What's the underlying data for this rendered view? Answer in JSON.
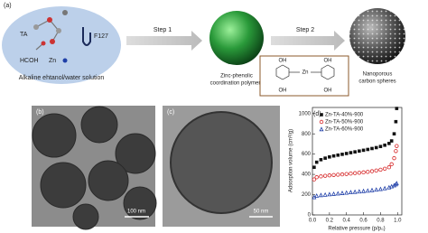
{
  "panels": {
    "a": {
      "label": "(a)",
      "ta": "TA",
      "hcoh": "HCOH",
      "zn": "Zn",
      "f127": "F127",
      "solution": "Alkaline ehtanol/water solution",
      "step1": "Step 1",
      "step2": "Step 2",
      "polymer": [
        "Zinc-phenolic",
        "coordination polymers"
      ],
      "carbon": [
        "Nanoporous",
        "carbon spheres"
      ],
      "molecule": {
        "oh": [
          "OH",
          "OH",
          "OH",
          "OH"
        ],
        "zn": "Zn"
      }
    },
    "b": {
      "label": "(b)",
      "scale": "100 nm"
    },
    "c": {
      "label": "(c)",
      "scale": "50 nm"
    },
    "d": {
      "label": "(d)"
    }
  },
  "chart_data": {
    "type": "scatter",
    "ylabel": "Adsorption volume (cm³/g)",
    "xlabel": "Relative pressure (p/p₀)",
    "x": [
      0.02,
      0.05,
      0.1,
      0.15,
      0.2,
      0.25,
      0.3,
      0.35,
      0.4,
      0.45,
      0.5,
      0.55,
      0.6,
      0.65,
      0.7,
      0.75,
      0.8,
      0.85,
      0.9,
      0.93,
      0.96,
      0.98,
      0.99
    ],
    "series": [
      {
        "name": "Zn-TA-40%-900",
        "color": "#111111",
        "marker": "square",
        "values": [
          470,
          520,
          545,
          560,
          572,
          582,
          590,
          598,
          606,
          614,
          622,
          630,
          638,
          646,
          655,
          664,
          675,
          688,
          705,
          730,
          800,
          920,
          1050
        ]
      },
      {
        "name": "Zn-TA-50%-900",
        "color": "#d62728",
        "marker": "circle",
        "values": [
          350,
          372,
          380,
          386,
          390,
          394,
          397,
          400,
          404,
          408,
          412,
          416,
          420,
          425,
          431,
          438,
          446,
          456,
          470,
          500,
          560,
          630,
          680
        ]
      },
      {
        "name": "Zn-TA-60%-900",
        "color": "#1f3fa8",
        "marker": "triangle",
        "values": [
          175,
          190,
          196,
          200,
          204,
          208,
          212,
          216,
          220,
          224,
          228,
          232,
          236,
          240,
          245,
          250,
          256,
          263,
          272,
          282,
          292,
          302,
          312
        ]
      }
    ],
    "xlim": [
      0,
      1.05
    ],
    "ylim": [
      0,
      1060
    ],
    "xticks": [
      {
        "value": 0,
        "label": "0.0"
      },
      0.2,
      0.4,
      0.6,
      0.8,
      {
        "value": 1,
        "label": "1.0"
      }
    ],
    "yticks": [
      0,
      200,
      400,
      600,
      800,
      1000
    ],
    "legend": "upper-left"
  }
}
